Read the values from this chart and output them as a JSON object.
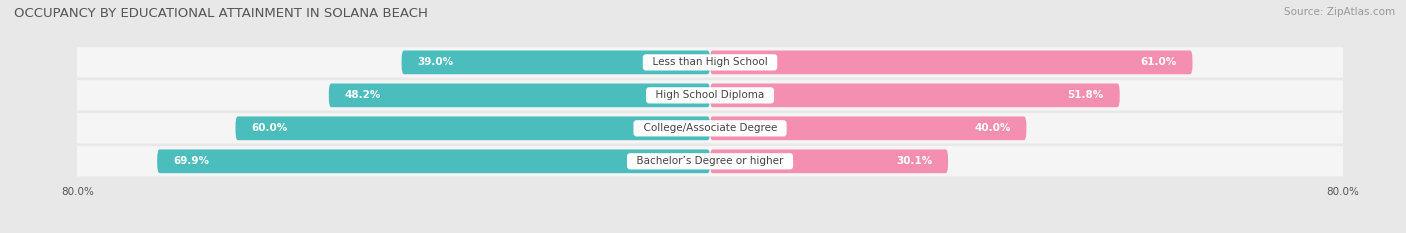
{
  "title": "OCCUPANCY BY EDUCATIONAL ATTAINMENT IN SOLANA BEACH",
  "source": "Source: ZipAtlas.com",
  "categories": [
    "Less than High School",
    "High School Diploma",
    "College/Associate Degree",
    "Bachelor’s Degree or higher"
  ],
  "owner_pct": [
    39.0,
    48.2,
    60.0,
    69.9
  ],
  "renter_pct": [
    61.0,
    51.8,
    40.0,
    30.1
  ],
  "owner_color": "#4BBDBD",
  "renter_color": "#F48FB1",
  "background_color": "#e8e8e8",
  "bar_row_color": "#f5f5f5",
  "title_fontsize": 9.5,
  "source_fontsize": 7.5,
  "label_fontsize": 7.5,
  "pct_fontsize": 7.5,
  "axis_max": 80.0
}
